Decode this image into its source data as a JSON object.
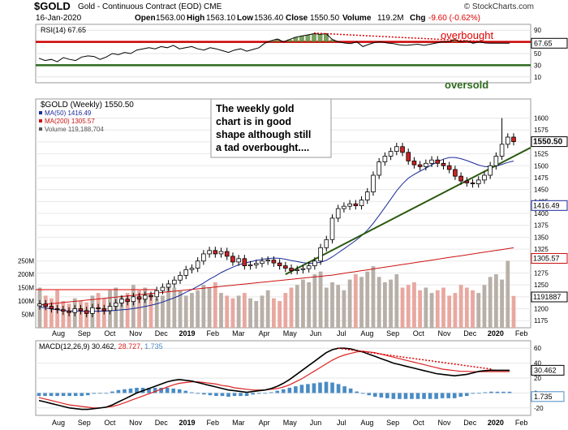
{
  "header": {
    "symbol": "$GOLD",
    "subtitle": "Gold - Continuous Contract (EOD)  CME",
    "date": "16-Jan-2020",
    "open_label": "Open",
    "open": "1563.00",
    "high_label": "High",
    "high": "1563.10",
    "low_label": "Low",
    "low": "1536.40",
    "close_label": "Close",
    "close": "1550.50",
    "volume_label": "Volume",
    "volume": "119.2M",
    "chg_label": "Chg",
    "chg": "-9.60 (-0.62%)",
    "logo": "© StockCharts.com"
  },
  "annotations": {
    "overbought": "overbought",
    "oversold": "oversold",
    "callout_lines": [
      "The weekly gold",
      "chart is in good",
      "shape although still",
      "a tad overbought...."
    ]
  },
  "colors": {
    "up_candle": "#ffffff",
    "down_candle": "#cc2222",
    "ma50": "#1a2a9a",
    "ma200": "#cc1111",
    "rsi_band": "#cc0000",
    "oversold_band": "#2d6a1e",
    "trendline": "#2d5a12",
    "macd": "#000000",
    "signal": "#dd2222",
    "histogram": "#4a8bc4"
  },
  "chart_data": [
    {
      "type": "line",
      "name": "RSI",
      "legend": "RSI(14) 67.65",
      "last_value_label": "67.65",
      "ylim": [
        0,
        100
      ],
      "ticks": [
        "90",
        "70",
        "50",
        "30",
        "10"
      ],
      "levels": [
        70,
        30
      ],
      "x": [
        0,
        1,
        2,
        3,
        4,
        5,
        6,
        7,
        8,
        9,
        10,
        11,
        12,
        13,
        14,
        15,
        16,
        17,
        18,
        19,
        20,
        21,
        22,
        23,
        24,
        25,
        26,
        27,
        28,
        29,
        30,
        31,
        32,
        33,
        34,
        35,
        36,
        37,
        38,
        39,
        40,
        41,
        42,
        43,
        44,
        45,
        46,
        47,
        48,
        49,
        50,
        51,
        52,
        53,
        54,
        55,
        56,
        57,
        58,
        59,
        60,
        61,
        62,
        63,
        64,
        65,
        66,
        67,
        68,
        69,
        70,
        71,
        72,
        73,
        74,
        75,
        76,
        77
      ],
      "values": [
        42,
        38,
        40,
        36,
        43,
        40,
        38,
        44,
        46,
        45,
        40,
        44,
        50,
        48,
        52,
        50,
        56,
        58,
        60,
        58,
        62,
        60,
        64,
        58,
        60,
        62,
        58,
        56,
        60,
        58,
        55,
        52,
        56,
        58,
        54,
        57,
        60,
        68,
        72,
        75,
        70,
        74,
        78,
        80,
        82,
        84,
        83,
        84,
        74,
        70,
        68,
        67,
        70,
        62,
        66,
        69,
        70,
        68,
        67,
        65,
        64,
        65,
        66,
        64,
        66,
        68,
        70,
        70,
        74,
        70,
        72,
        67.65,
        70,
        68,
        67.65,
        67.65,
        67.65,
        67.65
      ]
    },
    {
      "type": "candlestick",
      "name": "Price",
      "legend": [
        "$GOLD (Weekly) 1550.50",
        "MA(50) 1416.49",
        "MA(200) 1305.57",
        "Volume 119,188,704"
      ],
      "ylim": [
        1160,
        1640
      ],
      "ticks": [
        "1600",
        "1575",
        "1550",
        "1525",
        "1500",
        "1475",
        "1450",
        "1425",
        "1400",
        "1375",
        "1350",
        "1325",
        "1300",
        "1275",
        "1250",
        "1225",
        "1200",
        "1175"
      ],
      "volume_ticks": [
        "250M",
        "200M",
        "150M",
        "100M",
        "50M"
      ],
      "price_tags": [
        "1550.50",
        "1416.49",
        "1305.57",
        "1191887"
      ],
      "x_labels": [
        "Aug",
        "Sep",
        "Oct",
        "Nov",
        "Dec",
        "2019",
        "Feb",
        "Mar",
        "Apr",
        "May",
        "Jun",
        "Jul",
        "Aug",
        "Sep",
        "Oct",
        "Nov",
        "Dec",
        "2020",
        "Feb"
      ],
      "close": [
        1210,
        1205,
        1200,
        1198,
        1195,
        1192,
        1200,
        1196,
        1190,
        1202,
        1200,
        1196,
        1205,
        1212,
        1220,
        1215,
        1225,
        1220,
        1228,
        1225,
        1238,
        1245,
        1252,
        1260,
        1270,
        1282,
        1285,
        1300,
        1315,
        1322,
        1315,
        1320,
        1310,
        1298,
        1305,
        1290,
        1292,
        1295,
        1300,
        1302,
        1296,
        1290,
        1285,
        1280,
        1282,
        1284,
        1290,
        1300,
        1328,
        1345,
        1390,
        1410,
        1415,
        1420,
        1416,
        1428,
        1445,
        1480,
        1508,
        1520,
        1530,
        1540,
        1528,
        1510,
        1502,
        1498,
        1505,
        1512,
        1505,
        1500,
        1492,
        1478,
        1468,
        1464,
        1462,
        1470,
        1480,
        1500,
        1520,
        1545,
        1560,
        1550.5
      ],
      "volume": [
        150,
        120,
        110,
        140,
        100,
        90,
        110,
        100,
        95,
        120,
        130,
        110,
        140,
        150,
        120,
        130,
        160,
        140,
        150,
        130,
        110,
        120,
        160,
        150,
        140,
        120,
        130,
        140,
        160,
        150,
        170,
        130,
        120,
        110,
        120,
        130,
        110,
        100,
        120,
        140,
        110,
        100,
        130,
        150,
        160,
        180,
        170,
        200,
        210,
        150,
        170,
        160,
        140,
        180,
        200,
        190,
        210,
        230,
        190,
        170,
        180,
        200,
        150,
        160,
        170,
        140,
        150,
        130,
        140,
        150,
        120,
        130,
        160,
        150,
        140,
        130,
        160,
        190,
        200,
        180,
        250,
        119
      ]
    },
    {
      "type": "line",
      "name": "MACD",
      "legend": "MACD(12,26,9) 30.462, 28.727, 1.735",
      "macd_label": "30.462",
      "signal_label": "28.727",
      "hist_label": "1.735",
      "price_tags": [
        "30.462",
        "1.735"
      ],
      "ylim": [
        -30,
        70
      ],
      "ticks": [
        "60",
        "40",
        "20",
        "0",
        "-20"
      ],
      "macd": [
        -10,
        -12,
        -14,
        -16,
        -18,
        -20,
        -21,
        -22,
        -22,
        -21,
        -20,
        -19,
        -16,
        -12,
        -8,
        -4,
        0,
        3,
        6,
        9,
        12,
        15,
        17,
        18,
        17,
        16,
        14,
        12,
        10,
        8,
        6,
        4,
        3,
        2,
        1,
        2,
        3,
        4,
        6,
        9,
        13,
        18,
        24,
        30,
        36,
        42,
        48,
        54,
        58,
        60,
        60,
        59,
        57,
        55,
        52,
        49,
        46,
        43,
        40,
        38,
        36,
        34,
        32,
        30,
        28,
        26,
        25,
        24,
        23,
        24,
        25,
        27,
        29,
        30,
        30.5,
        30.462,
        30.4,
        30.4
      ],
      "signal": [
        -6,
        -8,
        -10,
        -12,
        -14,
        -16,
        -17,
        -18,
        -19,
        -20,
        -20,
        -19,
        -18,
        -16,
        -13,
        -10,
        -7,
        -4,
        -1,
        2,
        5,
        8,
        11,
        13,
        14,
        15,
        15,
        14,
        13,
        12,
        10,
        9,
        7,
        6,
        5,
        4,
        4,
        4,
        5,
        6,
        8,
        11,
        15,
        19,
        24,
        29,
        34,
        39,
        44,
        48,
        51,
        53,
        55,
        56,
        55,
        54,
        52,
        50,
        48,
        46,
        44,
        42,
        40,
        38,
        36,
        34,
        32,
        31,
        30,
        29,
        29,
        28.5,
        28.6,
        28.7,
        28.7,
        28.727,
        28.7,
        28.7
      ],
      "hist": [
        -4,
        -4,
        -4,
        -4,
        -4,
        -4,
        -4,
        -4,
        -3,
        -1,
        0,
        0,
        2,
        4,
        5,
        6,
        7,
        7,
        7,
        7,
        7,
        7,
        6,
        5,
        3,
        1,
        -1,
        -2,
        -3,
        -4,
        -4,
        -5,
        -4,
        -4,
        -4,
        -2,
        -1,
        0,
        1,
        3,
        5,
        7,
        9,
        11,
        12,
        13,
        14,
        15,
        14,
        12,
        9,
        6,
        2,
        -1,
        -3,
        -5,
        -6,
        -7,
        -8,
        -8,
        -8,
        -8,
        -8,
        -8,
        -8,
        -8,
        -7,
        -7,
        -7,
        -5,
        -4,
        -1,
        0,
        1,
        1.8,
        1.735,
        1.7,
        1.7
      ],
      "x_labels": [
        "Aug",
        "Sep",
        "Oct",
        "Nov",
        "Dec",
        "2019",
        "Feb",
        "Mar",
        "Apr",
        "May",
        "Jun",
        "Jul",
        "Aug",
        "Sep",
        "Oct",
        "Nov",
        "Dec",
        "2020",
        "Feb"
      ]
    }
  ]
}
